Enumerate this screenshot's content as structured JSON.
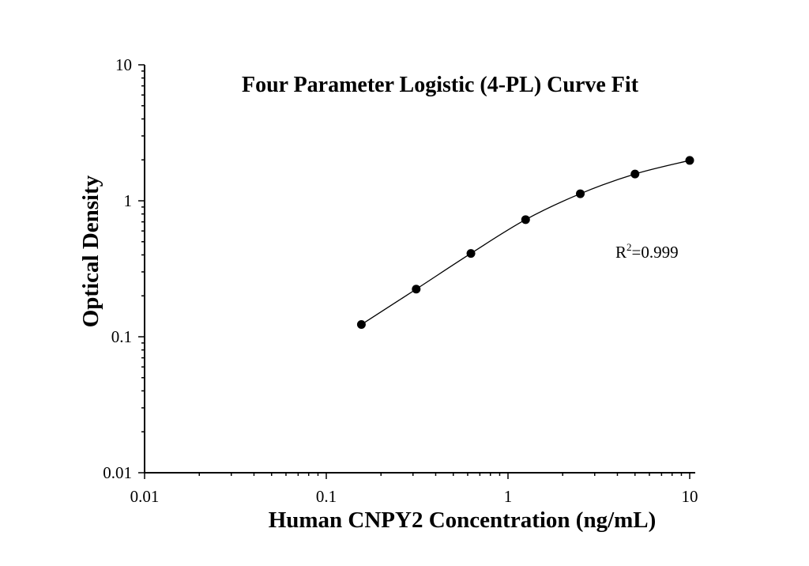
{
  "chart_data": {
    "type": "scatter",
    "title": "Four Parameter Logistic (4-PL) Curve Fit",
    "xlabel": "Human CNPY2 Concentration (ng/mL)",
    "ylabel": "Optical Density",
    "x_scale": "log",
    "y_scale": "log",
    "xlim": [
      0.01,
      10
    ],
    "ylim": [
      0.01,
      10
    ],
    "x_ticks": [
      {
        "value": 0.01,
        "label": "0.01"
      },
      {
        "value": 0.1,
        "label": "0.1"
      },
      {
        "value": 1,
        "label": "1"
      },
      {
        "value": 10,
        "label": "10"
      }
    ],
    "y_ticks": [
      {
        "value": 0.01,
        "label": "0.01"
      },
      {
        "value": 0.1,
        "label": "0.1"
      },
      {
        "value": 1,
        "label": "1"
      },
      {
        "value": 10,
        "label": "10"
      }
    ],
    "grid": false,
    "series": [
      {
        "x": [
          0.156,
          0.3125,
          0.625,
          1.25,
          2.5,
          5,
          10
        ],
        "y": [
          0.123,
          0.224,
          0.41,
          0.727,
          1.127,
          1.574,
          1.981
        ],
        "marker": "filled-circle",
        "fit": "4-PL curve",
        "color": "#000000"
      }
    ],
    "annotation": {
      "base": "R",
      "superscript": "2",
      "value_text": "=0.999"
    }
  }
}
